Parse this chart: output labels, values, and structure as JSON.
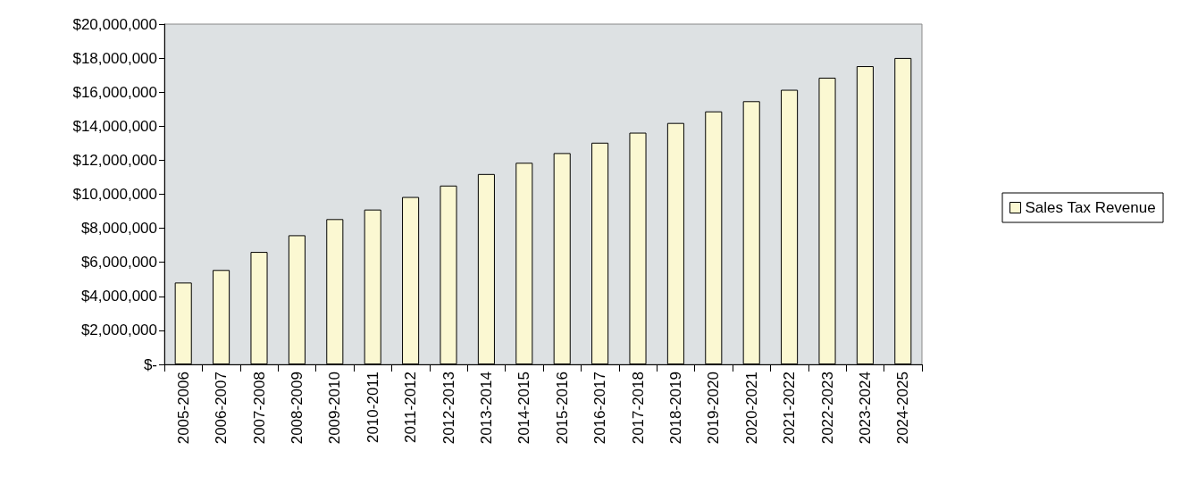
{
  "chart_data": {
    "type": "bar",
    "categories": [
      "2005-2006",
      "2006-2007",
      "2007-2008",
      "2008-2009",
      "2009-2010",
      "2010-2011",
      "2011-2012",
      "2012-2013",
      "2013-2014",
      "2014-2015",
      "2015-2016",
      "2016-2017",
      "2017-2018",
      "2018-2019",
      "2019-2020",
      "2020-2021",
      "2021-2022",
      "2022-2023",
      "2023-2024",
      "2024-2025"
    ],
    "series": [
      {
        "name": "Sales Tax Revenue",
        "color": "#fbf8d2",
        "values": [
          4810000,
          5550000,
          6610000,
          7590000,
          8540000,
          9100000,
          9840000,
          10510000,
          11190000,
          11850000,
          12420000,
          13030000,
          13620000,
          14190000,
          14870000,
          15470000,
          16140000,
          16850000,
          17530000,
          18010000
        ]
      }
    ],
    "ylim": [
      0,
      20000000
    ],
    "yticks": [
      {
        "value": 0,
        "label": "$-"
      },
      {
        "value": 2000000,
        "label": "$2,000,000"
      },
      {
        "value": 4000000,
        "label": "$4,000,000"
      },
      {
        "value": 6000000,
        "label": "$6,000,000"
      },
      {
        "value": 8000000,
        "label": "$8,000,000"
      },
      {
        "value": 10000000,
        "label": "$10,000,000"
      },
      {
        "value": 12000000,
        "label": "$12,000,000"
      },
      {
        "value": 14000000,
        "label": "$14,000,000"
      },
      {
        "value": 16000000,
        "label": "$16,000,000"
      },
      {
        "value": 18000000,
        "label": "$18,000,000"
      },
      {
        "value": 20000000,
        "label": "$20,000,000"
      }
    ],
    "grid": false,
    "legend": "right"
  }
}
